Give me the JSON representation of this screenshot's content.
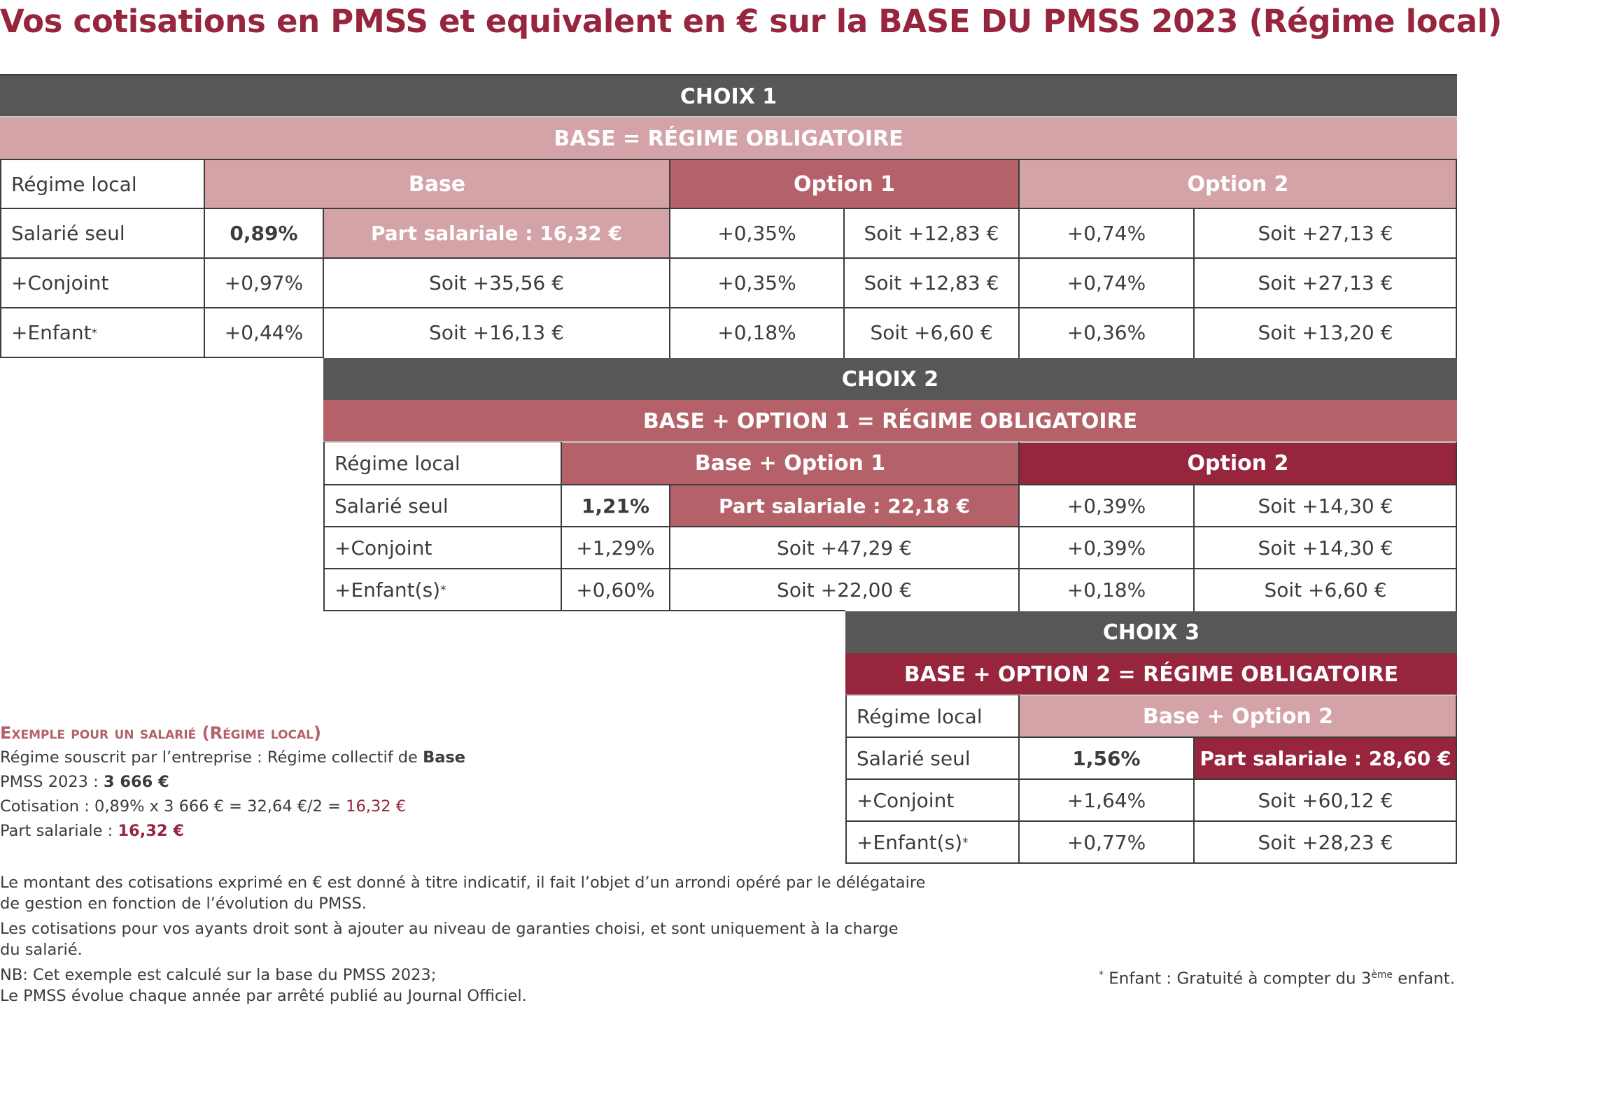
{
  "title": "Vos cotisations en PMSS et equivalent en € sur la BASE DU PMSS 2023 (Régime local)",
  "choix1": {
    "header": "CHOIX 1",
    "subheader": "BASE = RÉGIME OBLIGATOIRE",
    "col0": "Régime local",
    "col_base": "Base",
    "col_opt1": "Option 1",
    "col_opt2": "Option 2",
    "rows": [
      {
        "label": "Salarié seul",
        "base_pct": "0,89%",
        "base_eur": "Part salariale : 16,32 €",
        "o1_pct": "+0,35%",
        "o1_eur": "Soit +12,83 €",
        "o2_pct": "+0,74%",
        "o2_eur": "Soit +27,13 €"
      },
      {
        "label": "+Conjoint",
        "base_pct": "+0,97%",
        "base_eur": "Soit +35,56 €",
        "o1_pct": "+0,35%",
        "o1_eur": "Soit +12,83 €",
        "o2_pct": "+0,74%",
        "o2_eur": "Soit +27,13 €"
      },
      {
        "label": "+Enfant",
        "label_sup": "*",
        "base_pct": "+0,44%",
        "base_eur": "Soit +16,13 €",
        "o1_pct": "+0,18%",
        "o1_eur": "Soit +6,60 €",
        "o2_pct": "+0,36%",
        "o2_eur": "Soit +13,20 €"
      }
    ]
  },
  "choix2": {
    "header": "CHOIX 2",
    "subheader": "BASE + OPTION 1 = RÉGIME OBLIGATOIRE",
    "col0": "Régime local",
    "col_base": "Base + Option 1",
    "col_opt2": "Option 2",
    "rows": [
      {
        "label": "Salarié seul",
        "base_pct": "1,21%",
        "base_eur": "Part salariale : 22,18 €",
        "o2_pct": "+0,39%",
        "o2_eur": "Soit +14,30 €"
      },
      {
        "label": "+Conjoint",
        "base_pct": "+1,29%",
        "base_eur": "Soit +47,29 €",
        "o2_pct": "+0,39%",
        "o2_eur": "Soit +14,30 €"
      },
      {
        "label": "+Enfant(s)",
        "label_sup": "*",
        "base_pct": "+0,60%",
        "base_eur": "Soit +22,00 €",
        "o2_pct": "+0,18%",
        "o2_eur": "Soit +6,60 €"
      }
    ]
  },
  "choix3": {
    "header": "CHOIX 3",
    "subheader": "BASE + OPTION 2 = RÉGIME OBLIGATOIRE",
    "col0": "Régime local",
    "col_base": "Base + Option 2",
    "rows": [
      {
        "label": "Salarié seul",
        "base_pct": "1,56%",
        "base_eur": "Part salariale : 28,60 €"
      },
      {
        "label": "+Conjoint",
        "base_pct": "+1,64%",
        "base_eur": "Soit +60,12 €"
      },
      {
        "label": "+Enfant(s)",
        "label_sup": "*",
        "base_pct": "+0,77%",
        "base_eur": "Soit +28,23 €"
      }
    ]
  },
  "example": {
    "title": "Exemple pour un salarié (Régime local)",
    "line1_a": "Régime souscrit par l’entreprise : Régime collectif de ",
    "line1_b": "Base",
    "line2_a": "PMSS 2023 : ",
    "line2_b": "3 666 €",
    "line3_a": "Cotisation : 0,89% x 3 666 € = 32,64 €/2 = ",
    "line3_b": "16,32 €",
    "line4_a": "Part salariale : ",
    "line4_b": "16,32 €"
  },
  "notes": {
    "n1": "Le montant des cotisations exprimé en € est donné à titre indicatif, il fait l’objet d’un arrondi opéré par le délégataire",
    "n1b": "de gestion en fonction de l’évolution du PMSS.",
    "n2": "Les cotisations pour vos ayants droit sont à ajouter au niveau de garanties choisi, et sont uniquement à la charge",
    "n2b": "du salarié.",
    "n3": "NB: Cet exemple est calculé sur la base du PMSS 2023;",
    "n4": "Le PMSS évolue chaque année par arrêté publié au Journal Officiel."
  },
  "footnote": {
    "star": "*",
    "text_a": " Enfant : Gratuité à compter du 3",
    "text_sup": "ème",
    "text_b": " enfant."
  },
  "colors": {
    "title": "#96253d",
    "dark_gray": "#575756",
    "light_rose": "#d4a3a7",
    "mid_rose": "#b5616a",
    "bordeaux": "#96253d"
  }
}
